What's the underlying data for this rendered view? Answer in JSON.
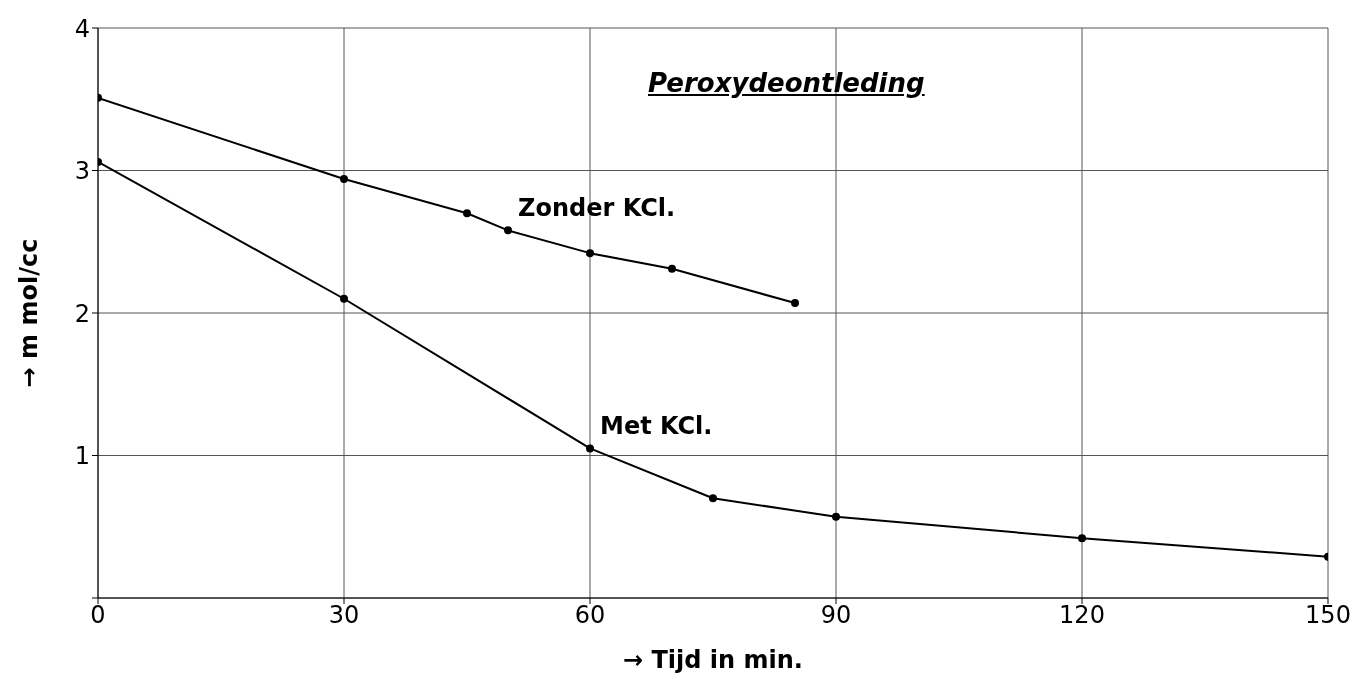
{
  "chart_data": {
    "type": "line",
    "title": "Peroxydeontleding",
    "xlabel": "→ Tijd in min.",
    "ylabel": "→ m mol/cc",
    "xlim": [
      0,
      150
    ],
    "xticks": [
      0,
      30,
      60,
      90,
      120,
      150
    ],
    "ylim": [
      0,
      4
    ],
    "yticks": [
      {
        "value": 0,
        "label": null
      },
      1,
      2,
      3,
      4
    ],
    "grid": true,
    "marker": "circle",
    "line_style": "solid",
    "series": [
      {
        "name": "Zonder KCl.",
        "color": "#000000",
        "x": [
          0,
          30,
          45,
          50,
          60,
          70,
          85
        ],
        "values": [
          3.51,
          2.94,
          2.7,
          2.58,
          2.42,
          2.31,
          2.07
        ]
      },
      {
        "name": "Met KCl.",
        "color": "#000000",
        "x": [
          0,
          30,
          60,
          75,
          90,
          120,
          150
        ],
        "values": [
          3.06,
          2.1,
          1.05,
          0.7,
          0.57,
          0.42,
          0.29
        ]
      }
    ]
  }
}
